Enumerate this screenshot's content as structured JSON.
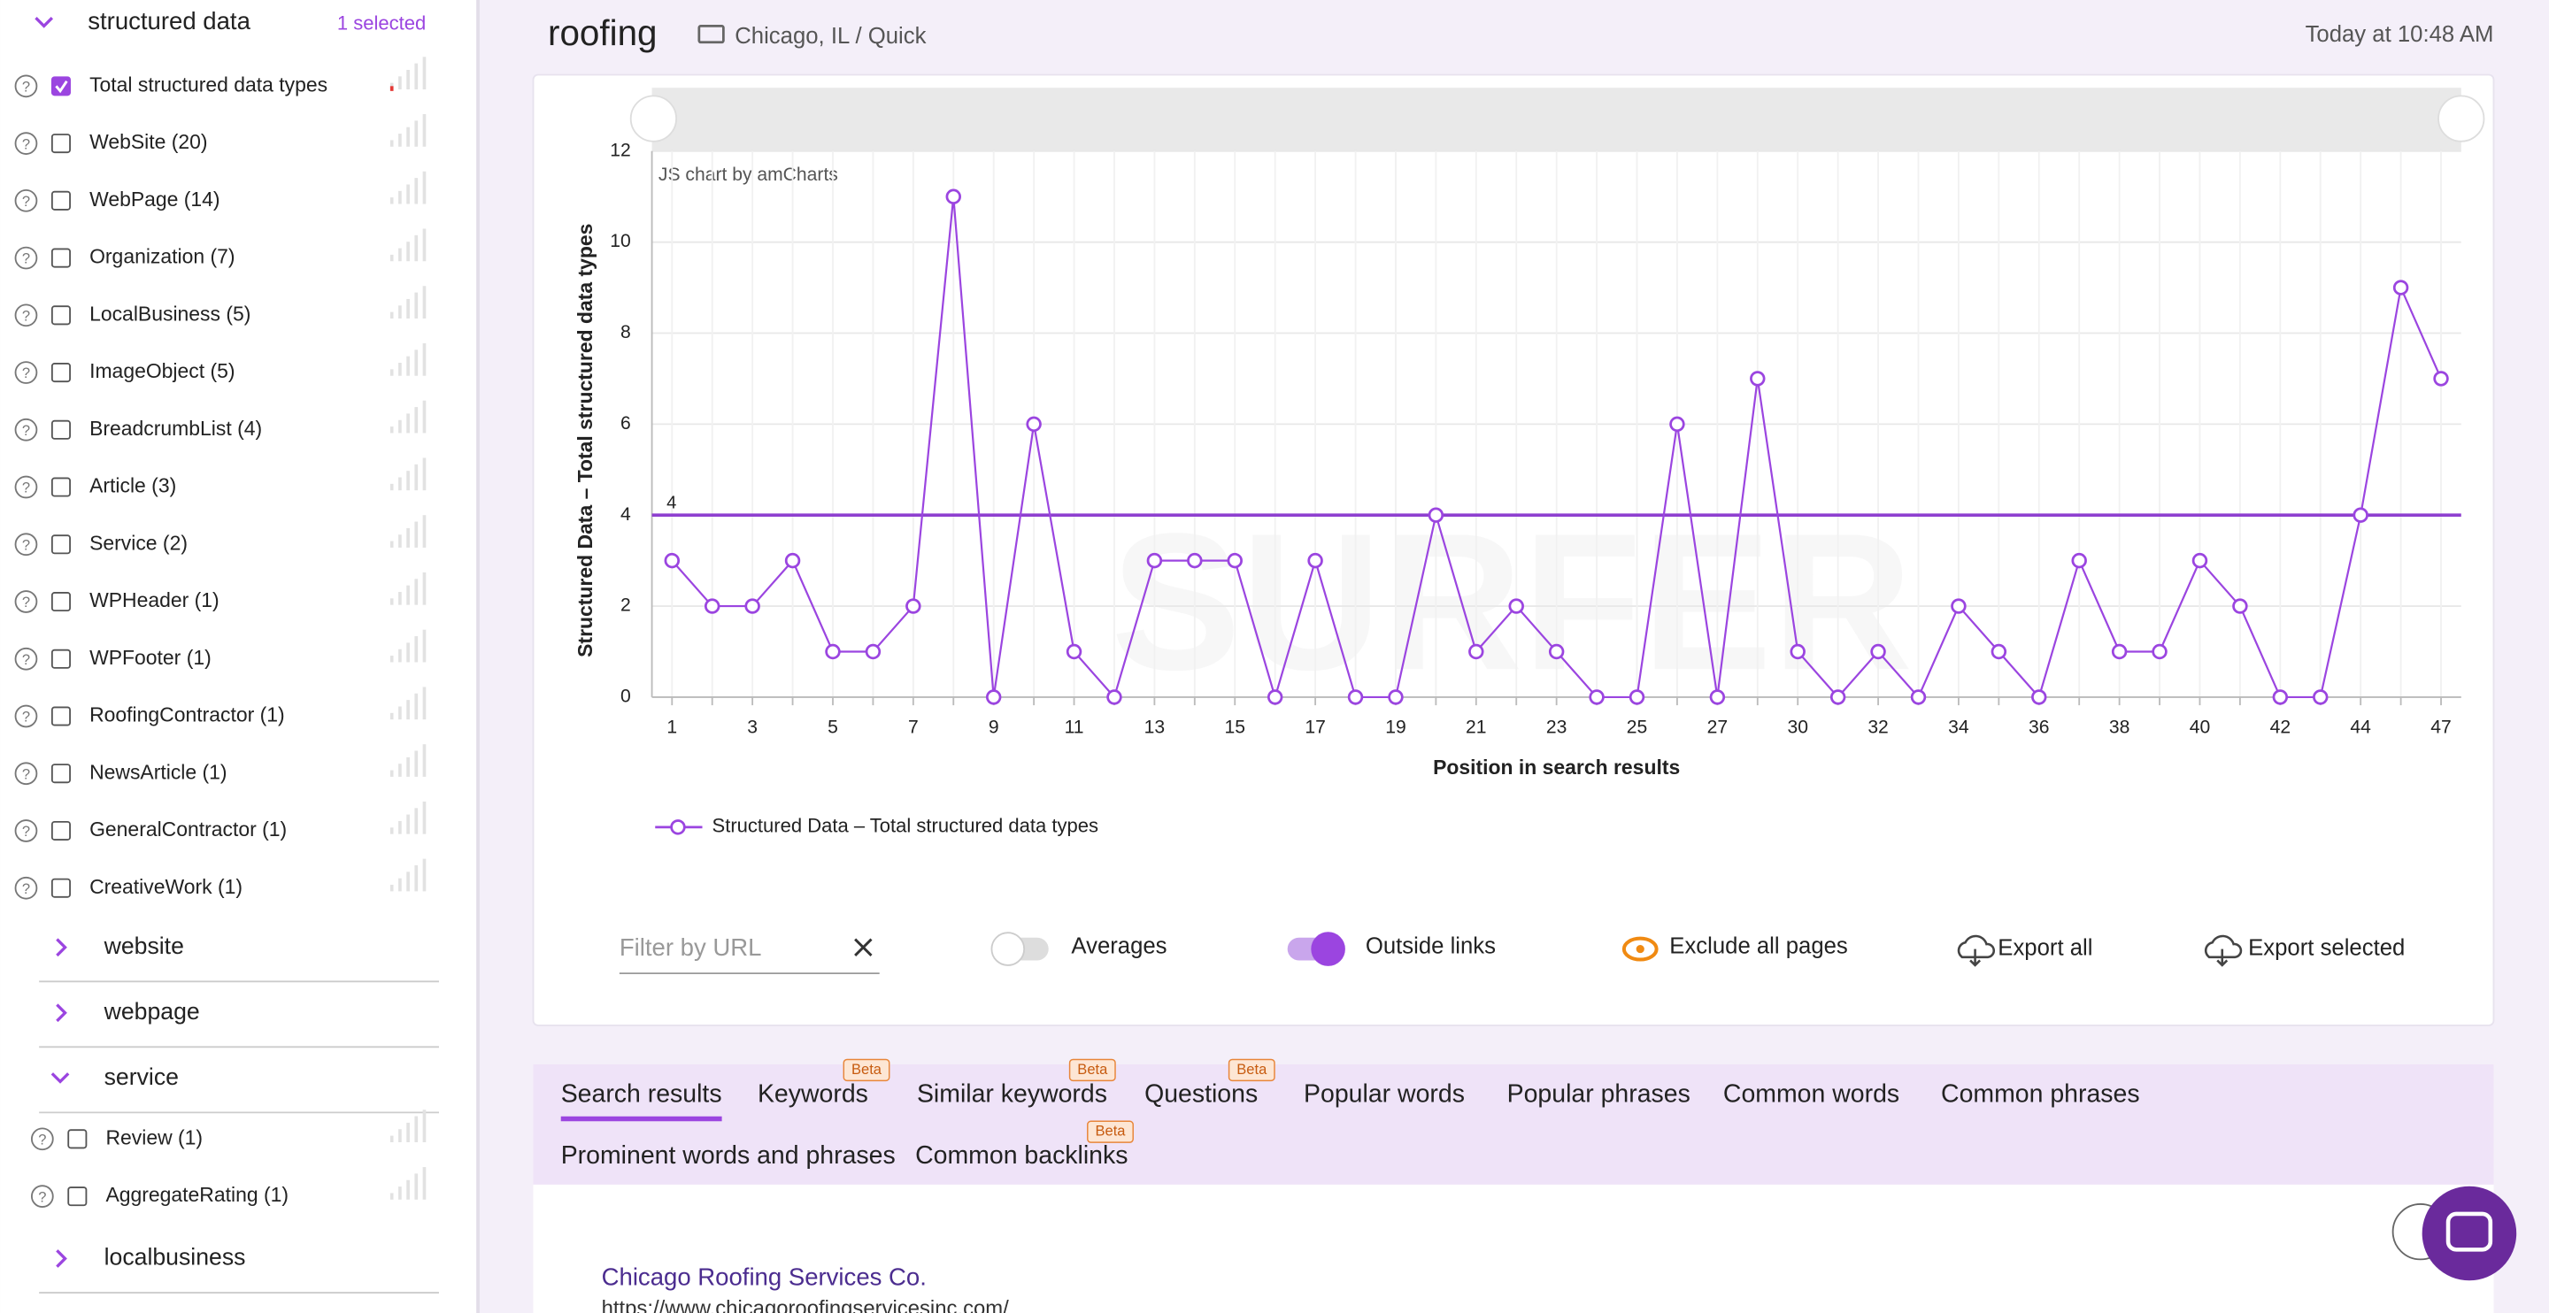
{
  "header": {
    "title": "roofing",
    "location": "Chicago, IL / Quick",
    "timestamp": "Today at 10:48 AM"
  },
  "sidebar": {
    "group_title": "structured data",
    "selected": "1 selected",
    "items": [
      {
        "label": "Total structured data types",
        "checked": true
      },
      {
        "label": "WebSite (20)",
        "checked": false
      },
      {
        "label": "WebPage (14)",
        "checked": false
      },
      {
        "label": "Organization (7)",
        "checked": false
      },
      {
        "label": "LocalBusiness (5)",
        "checked": false
      },
      {
        "label": "ImageObject (5)",
        "checked": false
      },
      {
        "label": "BreadcrumbList (4)",
        "checked": false
      },
      {
        "label": "Article (3)",
        "checked": false
      },
      {
        "label": "Service (2)",
        "checked": false
      },
      {
        "label": "WPHeader (1)",
        "checked": false
      },
      {
        "label": "WPFooter (1)",
        "checked": false
      },
      {
        "label": "RoofingContractor (1)",
        "checked": false
      },
      {
        "label": "NewsArticle (1)",
        "checked": false
      },
      {
        "label": "GeneralContractor (1)",
        "checked": false
      },
      {
        "label": "CreativeWork (1)",
        "checked": false
      }
    ],
    "sections": [
      {
        "title": "website",
        "open": false,
        "items": []
      },
      {
        "title": "webpage",
        "open": false,
        "items": []
      },
      {
        "title": "service",
        "open": true,
        "items": [
          "Review (1)",
          "AggregateRating (1)"
        ]
      },
      {
        "title": "localbusiness",
        "open": false,
        "items": []
      }
    ]
  },
  "chart_data": {
    "type": "line",
    "credit": "JS chart by amCharts",
    "x_label": "Position in search results",
    "y_label": "Structured Data – Total structured data types",
    "categories": [
      1,
      null,
      3,
      null,
      5,
      null,
      7,
      null,
      9,
      null,
      11,
      null,
      13,
      null,
      15,
      null,
      17,
      null,
      19,
      null,
      21,
      null,
      23,
      null,
      25,
      null,
      27,
      null,
      30,
      null,
      32,
      null,
      34,
      null,
      36,
      null,
      38,
      null,
      40,
      null,
      42,
      null,
      44,
      null,
      47
    ],
    "series": [
      {
        "name": "Structured Data – Total structured data types",
        "color": "#9b45e0",
        "values": [
          3,
          2,
          2,
          3,
          1,
          1,
          2,
          11,
          0,
          6,
          1,
          0,
          3,
          3,
          3,
          0,
          3,
          0,
          0,
          4,
          1,
          2,
          1,
          0,
          0,
          6,
          0,
          7,
          1,
          0,
          1,
          0,
          2,
          1,
          0,
          3,
          1,
          1,
          3,
          2,
          0,
          0,
          4,
          9,
          7
        ]
      }
    ],
    "average": {
      "value": 4,
      "label": "4"
    },
    "ylim": [
      0,
      12
    ],
    "yticks": [
      0,
      2,
      4,
      6,
      8,
      10,
      12
    ],
    "grid": true
  },
  "controls": {
    "filter_placeholder": "Filter by URL",
    "averages": {
      "label": "Averages",
      "on": false
    },
    "outside_links": {
      "label": "Outside links",
      "on": true
    },
    "exclude": "Exclude all pages",
    "export_all": "Export all",
    "export_selected": "Export selected"
  },
  "tabs": [
    {
      "label": "Search results",
      "active": true
    },
    {
      "label": "Keywords",
      "badge": "Beta"
    },
    {
      "label": "Similar keywords",
      "badge": "Beta"
    },
    {
      "label": "Questions",
      "badge": "Beta"
    },
    {
      "label": "Popular words"
    },
    {
      "label": "Popular phrases"
    },
    {
      "label": "Common words"
    },
    {
      "label": "Common phrases"
    },
    {
      "label": "Prominent words and phrases"
    },
    {
      "label": "Common backlinks",
      "badge": "Beta"
    }
  ],
  "result": {
    "title": "Chicago Roofing Services Co.",
    "url": "https://www.chicagoroofingservicesinc.com/"
  }
}
